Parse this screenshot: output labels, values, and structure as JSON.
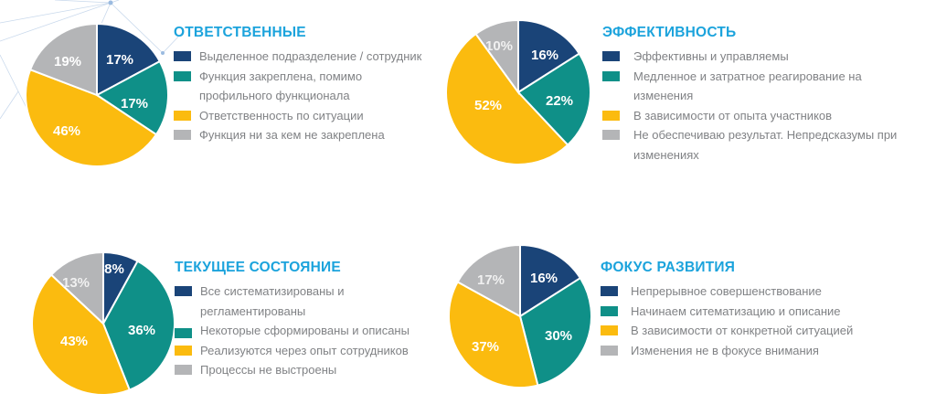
{
  "colors": {
    "navy": "#1a4478",
    "teal": "#0f9088",
    "yellow": "#fbbb0f",
    "gray": "#b4b5b7",
    "title": "#1ba3dc",
    "legend_text": "#808285"
  },
  "charts": [
    {
      "title": "ОТВЕТСТВЕННЫЕ",
      "labels": [
        "17%",
        "17%",
        "46%",
        "19%"
      ],
      "legend": [
        "Выделенное подразделение / сотрудник",
        "Функция закреплена, помимо профильного функционала",
        "Ответственность по ситуации",
        "Функция ни за кем не закреплена"
      ]
    },
    {
      "title": "ЭФФЕКТИВНОСТЬ",
      "labels": [
        "16%",
        "22%",
        "52%",
        "10%"
      ],
      "legend": [
        "Эффективны и управляемы",
        "Медленное и затратное реагирование на изменения",
        "В зависимости от опыта участников",
        "Не обеспечиваю результат. Непредсказумы при изменениях"
      ]
    },
    {
      "title": "ТЕКУЩЕЕ СОСТОЯНИЕ",
      "labels": [
        "8%",
        "36%",
        "43%",
        "13%"
      ],
      "legend": [
        "Все систематизированы и регламентированы",
        "Некоторые сформированы и описаны",
        "Реализуются через опыт сотрудников",
        "Процессы не выстроены"
      ]
    },
    {
      "title": "ФОКУС РАЗВИТИЯ",
      "labels": [
        "16%",
        "30%",
        "37%",
        "17%"
      ],
      "legend": [
        "Непрерывное совершенствование",
        "Начинаем ситематизацию и описание",
        "В зависимости от конкретной ситуацией",
        "Изменения не в фокусе внимания"
      ]
    }
  ],
  "chart_data": [
    {
      "type": "pie",
      "title": "ОТВЕТСТВЕННЫЕ",
      "categories": [
        "Выделенное подразделение / сотрудник",
        "Функция закреплена, помимо профильного функционала",
        "Ответственность по ситуации",
        "Функция ни за кем не закреплена"
      ],
      "values": [
        17,
        17,
        46,
        19
      ],
      "colors": [
        "#1a4478",
        "#0f9088",
        "#fbbb0f",
        "#b4b5b7"
      ],
      "legend_position": "right"
    },
    {
      "type": "pie",
      "title": "ЭФФЕКТИВНОСТЬ",
      "categories": [
        "Эффективны и управляемы",
        "Медленное и затратное реагирование на изменения",
        "В зависимости от опыта участников",
        "Не обеспечиваю результат. Непредсказумы при изменениях"
      ],
      "values": [
        16,
        22,
        52,
        10
      ],
      "colors": [
        "#1a4478",
        "#0f9088",
        "#fbbb0f",
        "#b4b5b7"
      ],
      "legend_position": "right"
    },
    {
      "type": "pie",
      "title": "ТЕКУЩЕЕ СОСТОЯНИЕ",
      "categories": [
        "Все систематизированы и регламентированы",
        "Некоторые сформированы и описаны",
        "Реализуются через опыт сотрудников",
        "Процессы не выстроены"
      ],
      "values": [
        8,
        36,
        43,
        13
      ],
      "colors": [
        "#1a4478",
        "#0f9088",
        "#fbbb0f",
        "#b4b5b7"
      ],
      "legend_position": "right"
    },
    {
      "type": "pie",
      "title": "ФОКУС РАЗВИТИЯ",
      "categories": [
        "Непрерывное совершенствование",
        "Начинаем ситематизацию и описание",
        "В зависимости от конкретной ситуацией",
        "Изменения не в фокусе внимания"
      ],
      "values": [
        16,
        30,
        37,
        17
      ],
      "colors": [
        "#1a4478",
        "#0f9088",
        "#fbbb0f",
        "#b4b5b7"
      ],
      "legend_position": "right"
    }
  ]
}
